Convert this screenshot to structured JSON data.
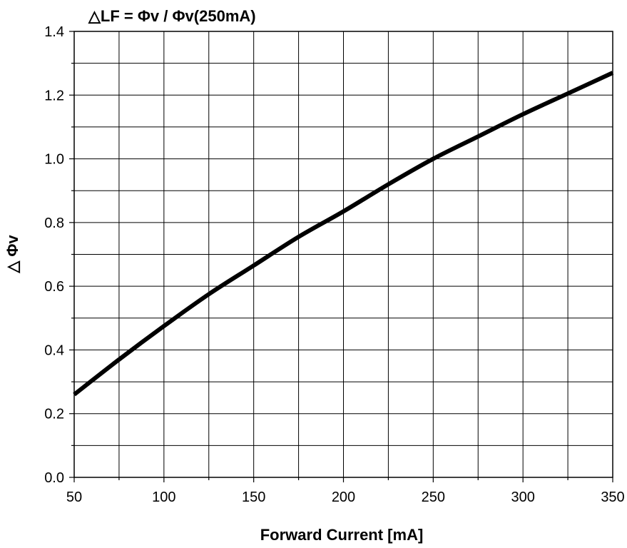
{
  "chart_data": {
    "type": "line",
    "title": "△LF = Φv / Φv(250mA)",
    "xlabel": "Forward Current [mA]",
    "ylabel": "△ Φv",
    "xlim": [
      50,
      350
    ],
    "ylim": [
      0.0,
      1.4
    ],
    "x_ticks": [
      50,
      100,
      150,
      200,
      250,
      300,
      350
    ],
    "x_tick_labels": [
      "50",
      "100",
      "150",
      "200",
      "250",
      "300",
      "350"
    ],
    "y_ticks": [
      0.0,
      0.2,
      0.4,
      0.6,
      0.8,
      1.0,
      1.2,
      1.4
    ],
    "y_tick_labels": [
      "0.0",
      "0.2",
      "0.4",
      "0.6",
      "0.8",
      "1.0",
      "1.2",
      "1.4"
    ],
    "x_minor_step": 25,
    "y_minor_step": 0.1,
    "grid": true,
    "line_color": "#000000",
    "series": [
      {
        "x": [
          50,
          75,
          100,
          125,
          150,
          175,
          200,
          225,
          250,
          275,
          300,
          325,
          350
        ],
        "values": [
          0.26,
          0.37,
          0.475,
          0.575,
          0.665,
          0.755,
          0.835,
          0.92,
          1.0,
          1.07,
          1.14,
          1.205,
          1.27
        ]
      }
    ]
  }
}
